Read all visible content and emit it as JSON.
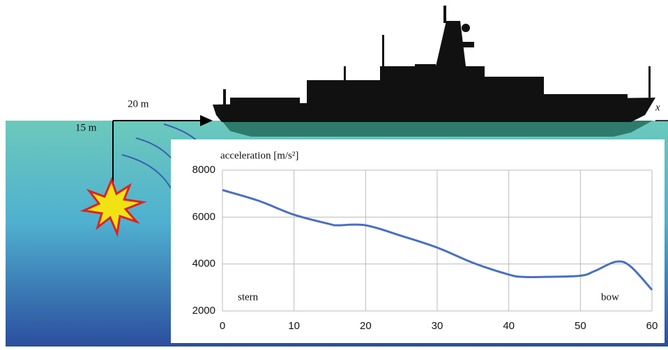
{
  "chart_data": {
    "type": "line",
    "y_label": "acceleration  [m/s²]",
    "x": [
      0,
      5,
      10,
      15,
      16,
      20,
      25,
      30,
      35,
      40,
      42,
      45,
      50,
      52,
      55,
      57,
      60
    ],
    "series": [
      {
        "color": "#4a6fc0",
        "values": [
          7150,
          6700,
          6100,
          5700,
          5650,
          5650,
          5200,
          4700,
          4050,
          3550,
          3450,
          3450,
          3500,
          3700,
          4100,
          3900,
          2900
        ]
      }
    ],
    "xlim": [
      0,
      60
    ],
    "xticks": [
      0,
      10,
      20,
      30,
      40,
      50,
      60
    ],
    "ylim": [
      2000,
      8000
    ],
    "yticks": [
      2000,
      4000,
      6000,
      8000
    ],
    "grid": true,
    "annotations": [
      "stern",
      "bow",
      "20 m",
      "15 m",
      "x"
    ]
  }
}
